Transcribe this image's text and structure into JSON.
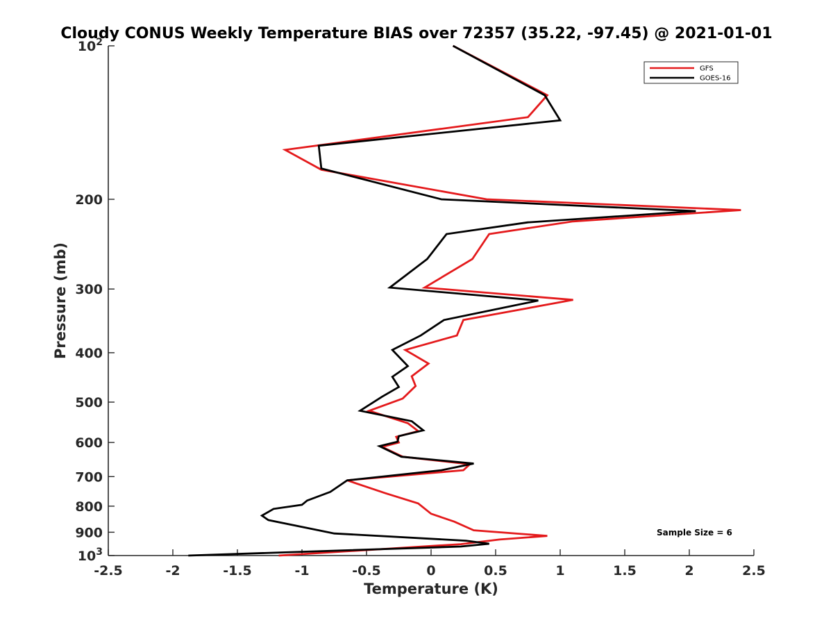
{
  "chart_data": {
    "type": "line",
    "title": "Cloudy CONUS Weekly Temperature BIAS over 72357 (35.22, -97.45) @ 2021-01-01",
    "xlabel": "Temperature (K)",
    "ylabel": "Pressure (mb)",
    "xlim": [
      -2.5,
      2.5
    ],
    "ylim": [
      100,
      1000
    ],
    "yscale": "log",
    "y_reversed": true,
    "grid": false,
    "legend_position": "top-right",
    "annotation": "Sample Size = 6",
    "x_ticks": [
      "-2.5",
      "-2",
      "-1.5",
      "-1",
      "-0.5",
      "0",
      "0.5",
      "1",
      "1.5",
      "2",
      "2.5"
    ],
    "y_ticks": [
      {
        "value": 100,
        "base": "10",
        "exp": "2"
      },
      {
        "value": 200,
        "label": "200"
      },
      {
        "value": 300,
        "label": "300"
      },
      {
        "value": 400,
        "label": "400"
      },
      {
        "value": 500,
        "label": "500"
      },
      {
        "value": 600,
        "label": "600"
      },
      {
        "value": 700,
        "label": "700"
      },
      {
        "value": 800,
        "label": "800"
      },
      {
        "value": 900,
        "label": "900"
      },
      {
        "value": 1000,
        "base": "10",
        "exp": "3"
      }
    ],
    "series": [
      {
        "name": "GFS",
        "color": "#e41a1c",
        "points": [
          [
            0.17,
            100
          ],
          [
            0.9,
            125
          ],
          [
            0.75,
            138
          ],
          [
            -1.13,
            160
          ],
          [
            -0.85,
            175
          ],
          [
            0.43,
            200
          ],
          [
            2.4,
            210
          ],
          [
            1.1,
            221
          ],
          [
            0.45,
            234
          ],
          [
            0.32,
            262
          ],
          [
            -0.05,
            298
          ],
          [
            1.1,
            315
          ],
          [
            0.25,
            345
          ],
          [
            0.2,
            370
          ],
          [
            -0.2,
            395
          ],
          [
            -0.02,
            420
          ],
          [
            -0.15,
            445
          ],
          [
            -0.12,
            465
          ],
          [
            -0.22,
            492
          ],
          [
            -0.48,
            520
          ],
          [
            -0.18,
            550
          ],
          [
            -0.1,
            570
          ],
          [
            -0.27,
            585
          ],
          [
            -0.25,
            600
          ],
          [
            -0.38,
            612
          ],
          [
            -0.22,
            640
          ],
          [
            0.3,
            662
          ],
          [
            0.25,
            680
          ],
          [
            -0.65,
            712
          ],
          [
            -0.35,
            755
          ],
          [
            -0.1,
            790
          ],
          [
            0.0,
            828
          ],
          [
            0.18,
            858
          ],
          [
            0.33,
            892
          ],
          [
            0.9,
            915
          ],
          [
            0.53,
            930
          ],
          [
            0.23,
            950
          ],
          [
            -1.18,
            1000
          ]
        ]
      },
      {
        "name": "GOES-16",
        "color": "#000000",
        "points": [
          [
            0.17,
            100
          ],
          [
            0.88,
            125
          ],
          [
            1.0,
            140
          ],
          [
            -0.87,
            157
          ],
          [
            -0.85,
            174
          ],
          [
            0.08,
            200
          ],
          [
            2.05,
            211
          ],
          [
            0.75,
            222
          ],
          [
            0.12,
            234
          ],
          [
            -0.03,
            262
          ],
          [
            -0.32,
            298
          ],
          [
            0.83,
            316
          ],
          [
            0.1,
            345
          ],
          [
            -0.08,
            370
          ],
          [
            -0.3,
            395
          ],
          [
            -0.18,
            425
          ],
          [
            -0.3,
            446
          ],
          [
            -0.25,
            467
          ],
          [
            -0.38,
            488
          ],
          [
            -0.55,
            520
          ],
          [
            -0.15,
            545
          ],
          [
            -0.06,
            568
          ],
          [
            -0.25,
            583
          ],
          [
            -0.26,
            598
          ],
          [
            -0.4,
            610
          ],
          [
            -0.23,
            640
          ],
          [
            0.33,
            660
          ],
          [
            0.08,
            680
          ],
          [
            -0.65,
            712
          ],
          [
            -0.78,
            750
          ],
          [
            -0.96,
            780
          ],
          [
            -1.0,
            795
          ],
          [
            -1.22,
            810
          ],
          [
            -1.31,
            835
          ],
          [
            -1.26,
            852
          ],
          [
            -0.75,
            905
          ],
          [
            0.27,
            935
          ],
          [
            0.45,
            948
          ],
          [
            0.23,
            960
          ],
          [
            -1.88,
            1000
          ]
        ]
      }
    ]
  }
}
